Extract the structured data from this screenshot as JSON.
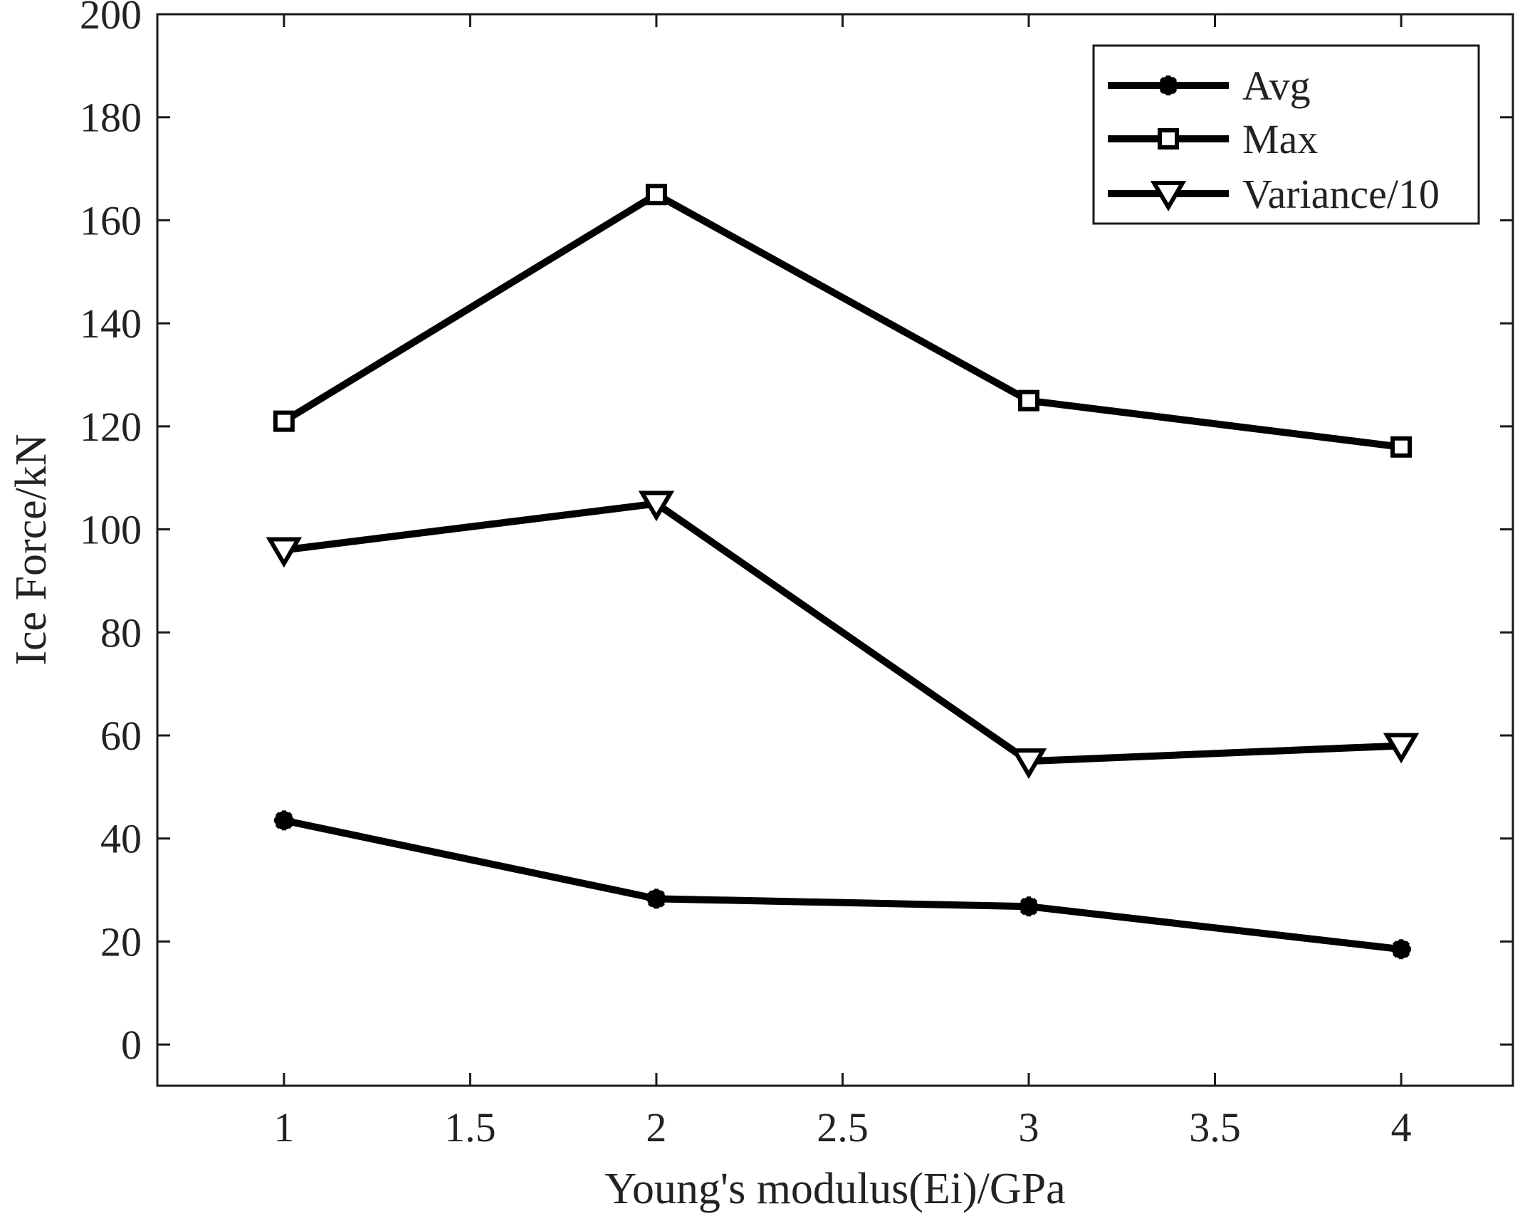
{
  "chart_data": {
    "type": "line",
    "title": "",
    "xlabel": "Young's modulus(Ei)/GPa",
    "ylabel": "Ice  Force/kN",
    "x": [
      1,
      2,
      3,
      4
    ],
    "xlim": [
      0.66,
      4.3
    ],
    "ylim": [
      -8,
      200
    ],
    "xticks": [
      1,
      1.5,
      2,
      2.5,
      3,
      3.5,
      4
    ],
    "xtick_labels": [
      "1",
      "1.5",
      "2",
      "2.5",
      "3",
      "3.5",
      "4"
    ],
    "yticks": [
      0,
      20,
      40,
      60,
      80,
      100,
      120,
      140,
      160,
      180,
      200
    ],
    "ytick_labels": [
      "0",
      "20",
      "40",
      "60",
      "80",
      "100",
      "120",
      "140",
      "160",
      "180",
      "200"
    ],
    "grid": false,
    "legend_position": "top-right",
    "series": [
      {
        "name": "Avg",
        "marker": "star",
        "values": [
          43.5,
          28.3,
          26.8,
          18.5
        ]
      },
      {
        "name": "Max",
        "marker": "square",
        "values": [
          121,
          165,
          125,
          116
        ]
      },
      {
        "name": "Variance/10",
        "marker": "triangle-down",
        "values": [
          96,
          105,
          55,
          58
        ]
      }
    ]
  }
}
